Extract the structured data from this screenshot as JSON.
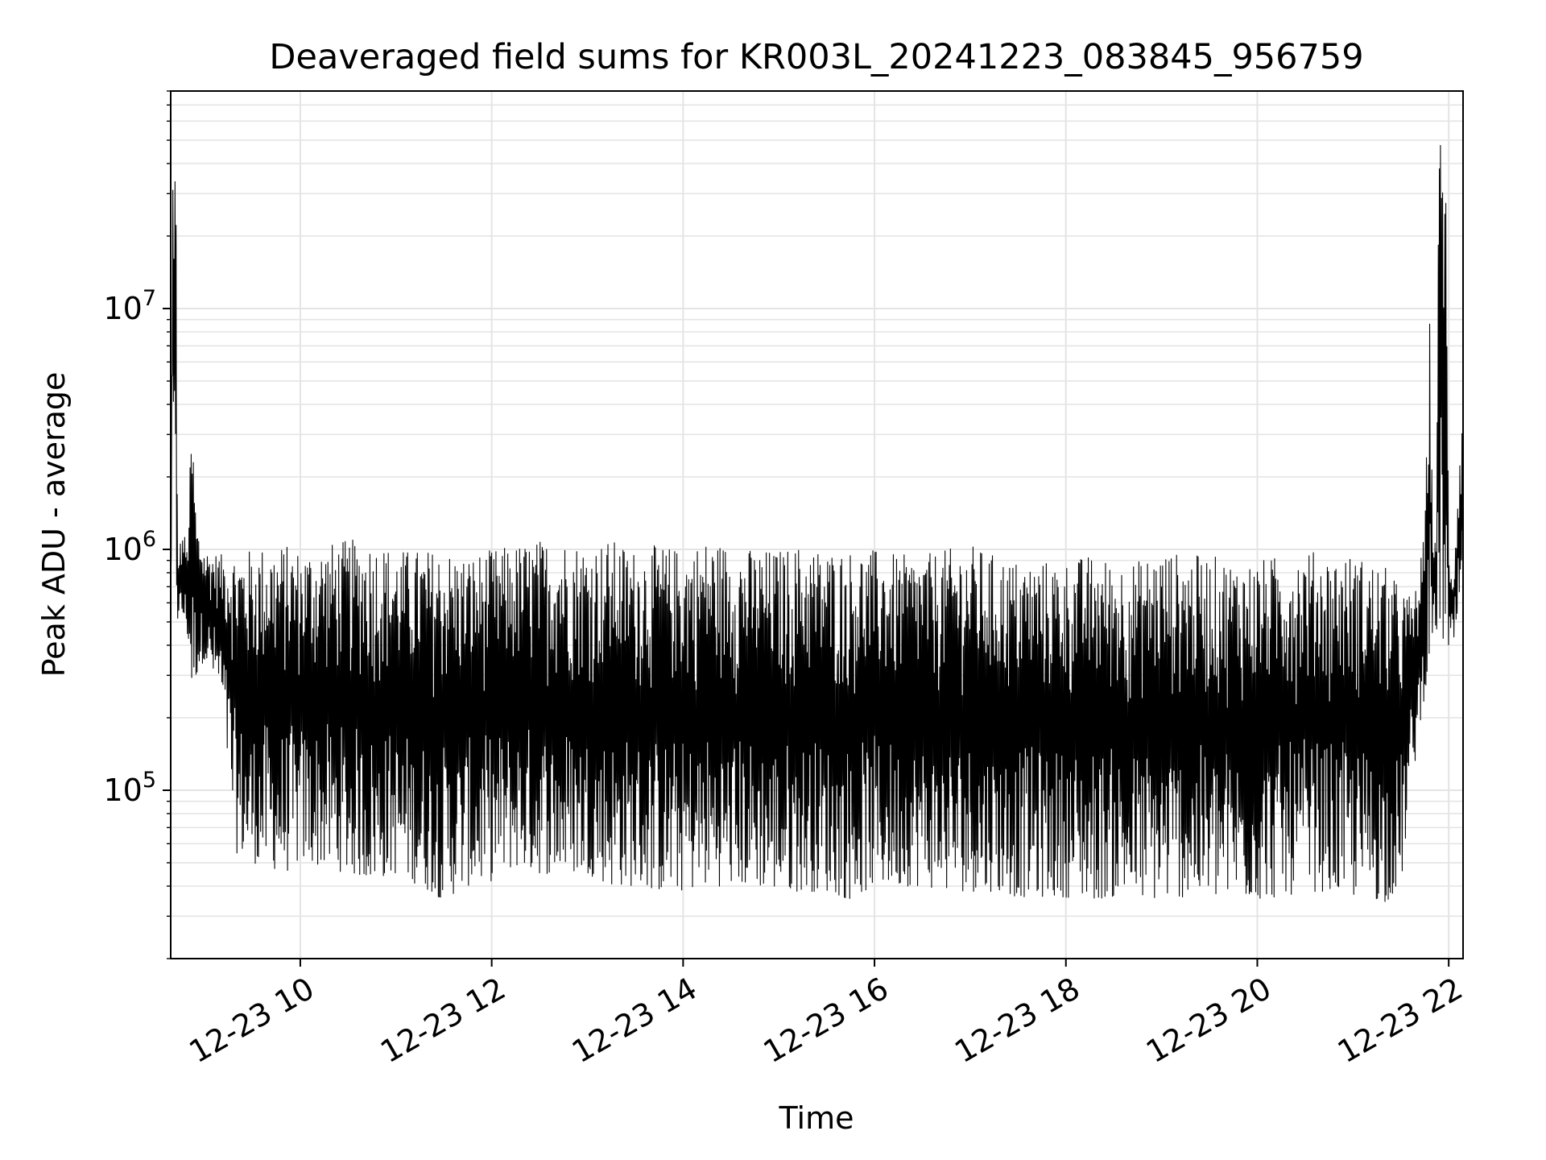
{
  "chart_data": {
    "type": "line",
    "title": "Deaveraged field sums for KR003L_20241223_083845_956759",
    "xlabel": "Time",
    "ylabel": "Peak ADU - average",
    "xscale": "time",
    "yscale": "log",
    "xlim": [
      "2024-12-23 08:38:45",
      "2024-12-23 22:09:00"
    ],
    "ylim": [
      20000,
      80000000
    ],
    "x_ticks": [
      {
        "time": "2024-12-23 10:00",
        "label": "12-23 10"
      },
      {
        "time": "2024-12-23 12:00",
        "label": "12-23 12"
      },
      {
        "time": "2024-12-23 14:00",
        "label": "12-23 14"
      },
      {
        "time": "2024-12-23 16:00",
        "label": "12-23 16"
      },
      {
        "time": "2024-12-23 18:00",
        "label": "12-23 18"
      },
      {
        "time": "2024-12-23 20:00",
        "label": "12-23 20"
      },
      {
        "time": "2024-12-23 22:00",
        "label": "12-23 22"
      }
    ],
    "y_ticks": [
      {
        "value": 100000,
        "base": "10",
        "exp": "5"
      },
      {
        "value": 1000000,
        "base": "10",
        "exp": "6"
      },
      {
        "value": 10000000,
        "base": "10",
        "exp": "7"
      }
    ],
    "grid": true,
    "line_color": "#000000",
    "series": [
      {
        "x": [
          "2024-12-23 08:38:45",
          "2024-12-23 08:40",
          "2024-12-23 08:42",
          "2024-12-23 08:43",
          "2024-12-23 08:44",
          "2024-12-23 08:45",
          "2024-12-23 08:47",
          "2024-12-23 08:49",
          "2024-12-23 08:52",
          "2024-12-23 08:55",
          "2024-12-23 09:00",
          "2024-12-23 09:10",
          "2024-12-23 09:20",
          "2024-12-23 09:30",
          "2024-12-23 09:40",
          "2024-12-23 09:50",
          "2024-12-23 10:00",
          "2024-12-23 10:15",
          "2024-12-23 10:30",
          "2024-12-23 10:45",
          "2024-12-23 11:00",
          "2024-12-23 11:15",
          "2024-12-23 11:30",
          "2024-12-23 11:45",
          "2024-12-23 12:00",
          "2024-12-23 12:15",
          "2024-12-23 12:30",
          "2024-12-23 12:45",
          "2024-12-23 13:00",
          "2024-12-23 13:15",
          "2024-12-23 13:30",
          "2024-12-23 13:45",
          "2024-12-23 14:00",
          "2024-12-23 14:15",
          "2024-12-23 14:30",
          "2024-12-23 14:45",
          "2024-12-23 15:00",
          "2024-12-23 15:15",
          "2024-12-23 15:30",
          "2024-12-23 15:45",
          "2024-12-23 16:00",
          "2024-12-23 16:15",
          "2024-12-23 16:30",
          "2024-12-23 16:45",
          "2024-12-23 17:00",
          "2024-12-23 17:15",
          "2024-12-23 17:30",
          "2024-12-23 17:45",
          "2024-12-23 18:00",
          "2024-12-23 18:15",
          "2024-12-23 18:30",
          "2024-12-23 18:45",
          "2024-12-23 19:00",
          "2024-12-23 19:15",
          "2024-12-23 19:30",
          "2024-12-23 19:45",
          "2024-12-23 20:00",
          "2024-12-23 20:15",
          "2024-12-23 20:30",
          "2024-12-23 20:45",
          "2024-12-23 21:00",
          "2024-12-23 21:10",
          "2024-12-23 21:20",
          "2024-12-23 21:30",
          "2024-12-23 21:35",
          "2024-12-23 21:40",
          "2024-12-23 21:45",
          "2024-12-23 21:48",
          "2024-12-23 21:50",
          "2024-12-23 21:52",
          "2024-12-23 21:54",
          "2024-12-23 21:56",
          "2024-12-23 21:58",
          "2024-12-23 22:00",
          "2024-12-23 22:03",
          "2024-12-23 22:06",
          "2024-12-23 22:09"
        ],
        "low": [
          600000,
          2500000,
          600000,
          500000,
          550000,
          500000,
          500000,
          450000,
          250000,
          300000,
          350000,
          250000,
          55000,
          50000,
          48000,
          45000,
          50000,
          48000,
          45000,
          42000,
          45000,
          40000,
          35000,
          40000,
          42000,
          48000,
          45000,
          45000,
          45000,
          40000,
          40000,
          38000,
          38000,
          40000,
          40000,
          40000,
          38000,
          38000,
          38000,
          35000,
          40000,
          40000,
          40000,
          38000,
          38000,
          38000,
          36000,
          36000,
          36000,
          35000,
          36000,
          35000,
          35000,
          36000,
          35000,
          36000,
          35000,
          36000,
          38000,
          38000,
          36000,
          36000,
          34000,
          40000,
          80000,
          150000,
          250000,
          350000,
          400000,
          450000,
          450000,
          400000,
          400000,
          350000,
          400000,
          500000,
          550000
        ],
        "high": [
          700000,
          40000000,
          50000000,
          800000,
          1000000,
          1100000,
          1200000,
          1000000,
          3500000,
          1300000,
          1000000,
          950000,
          1000000,
          1000000,
          1050000,
          1050000,
          1000000,
          1050000,
          1100000,
          1100000,
          1000000,
          1000000,
          1000000,
          950000,
          1000000,
          1050000,
          1100000,
          1100000,
          1050000,
          1100000,
          1000000,
          1050000,
          1000000,
          1100000,
          1050000,
          1000000,
          1000000,
          1050000,
          1000000,
          1000000,
          1000000,
          950000,
          950000,
          1000000,
          1050000,
          950000,
          900000,
          900000,
          900000,
          950000,
          900000,
          900000,
          1000000,
          950000,
          950000,
          900000,
          900000,
          950000,
          1000000,
          950000,
          950000,
          900000,
          850000,
          700000,
          650000,
          700000,
          1200000,
          9500000,
          1300000,
          1100000,
          55000000,
          60000000,
          50000000,
          1000000,
          800000,
          2000000,
          4800000
        ]
      }
    ]
  }
}
